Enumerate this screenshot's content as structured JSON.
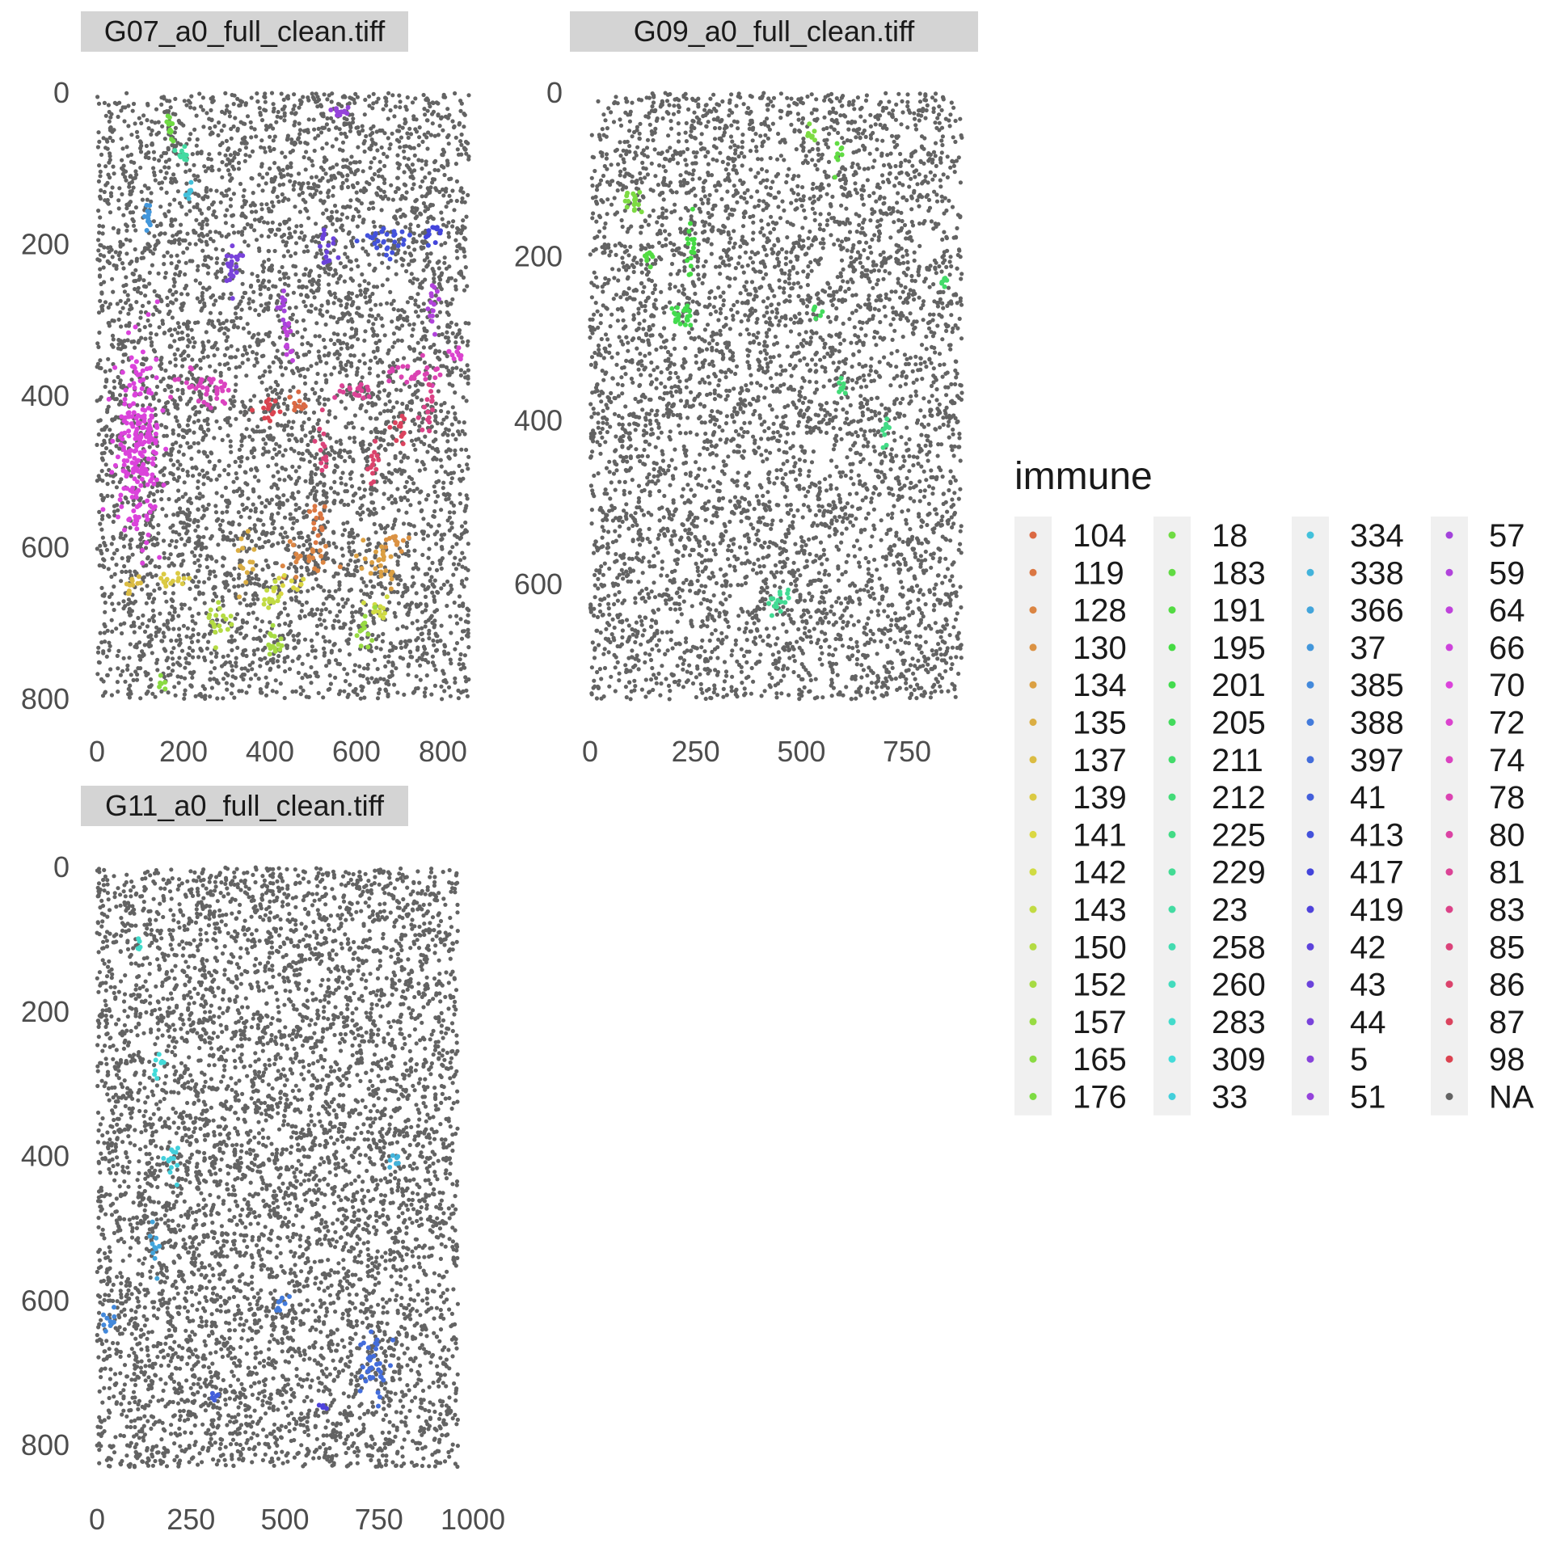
{
  "chart_data": {
    "type": "scatter",
    "title": "",
    "panels": [
      {
        "strip": "G07_a0_full_clean.tiff",
        "xlim": [
          0,
          860
        ],
        "ylim": [
          0,
          800
        ],
        "y_reversed": true,
        "x_ticks": [
          0,
          200,
          400,
          600,
          800
        ],
        "y_ticks": [
          0,
          200,
          400,
          600,
          800
        ],
        "extent": {
          "x": [
            0,
            860
          ],
          "y": [
            0,
            800
          ]
        },
        "point_count": 5200,
        "background_series": "NA",
        "clusters": [
          {
            "label": "18",
            "x": 170,
            "y": 55,
            "n": 12,
            "spread": [
              10,
              20
            ]
          },
          {
            "label": "23",
            "x": 200,
            "y": 80,
            "n": 10,
            "spread": [
              15,
              8
            ]
          },
          {
            "label": "334",
            "x": 215,
            "y": 130,
            "n": 8,
            "spread": [
              6,
              10
            ]
          },
          {
            "label": "37",
            "x": 120,
            "y": 165,
            "n": 12,
            "spread": [
              8,
              15
            ]
          },
          {
            "label": "51",
            "x": 560,
            "y": 25,
            "n": 14,
            "spread": [
              30,
              8
            ]
          },
          {
            "label": "44",
            "x": 310,
            "y": 225,
            "n": 22,
            "spread": [
              20,
              30
            ]
          },
          {
            "label": "43",
            "x": 530,
            "y": 200,
            "n": 16,
            "spread": [
              25,
              25
            ]
          },
          {
            "label": "413",
            "x": 680,
            "y": 195,
            "n": 30,
            "spread": [
              60,
              20
            ]
          },
          {
            "label": "417",
            "x": 780,
            "y": 185,
            "n": 10,
            "spread": [
              30,
              12
            ]
          },
          {
            "label": "57",
            "x": 430,
            "y": 280,
            "n": 12,
            "spread": [
              10,
              20
            ]
          },
          {
            "label": "59",
            "x": 780,
            "y": 280,
            "n": 14,
            "spread": [
              15,
              25
            ]
          },
          {
            "label": "64",
            "x": 440,
            "y": 330,
            "n": 12,
            "spread": [
              10,
              20
            ]
          },
          {
            "label": "70",
            "x": 95,
            "y": 460,
            "n": 220,
            "spread": [
              45,
              90
            ]
          },
          {
            "label": "74",
            "x": 250,
            "y": 390,
            "n": 40,
            "spread": [
              50,
              20
            ]
          },
          {
            "label": "78",
            "x": 740,
            "y": 370,
            "n": 26,
            "spread": [
              60,
              15
            ]
          },
          {
            "label": "72",
            "x": 830,
            "y": 340,
            "n": 10,
            "spread": [
              20,
              10
            ]
          },
          {
            "label": "81",
            "x": 610,
            "y": 395,
            "n": 18,
            "spread": [
              40,
              10
            ]
          },
          {
            "label": "83",
            "x": 770,
            "y": 410,
            "n": 16,
            "spread": [
              15,
              25
            ]
          },
          {
            "label": "85",
            "x": 520,
            "y": 480,
            "n": 14,
            "spread": [
              10,
              30
            ]
          },
          {
            "label": "86",
            "x": 640,
            "y": 490,
            "n": 14,
            "spread": [
              15,
              25
            ]
          },
          {
            "label": "87",
            "x": 700,
            "y": 440,
            "n": 12,
            "spread": [
              15,
              15
            ]
          },
          {
            "label": "98",
            "x": 400,
            "y": 420,
            "n": 14,
            "spread": [
              30,
              15
            ]
          },
          {
            "label": "104",
            "x": 460,
            "y": 410,
            "n": 10,
            "spread": [
              25,
              10
            ]
          },
          {
            "label": "119",
            "x": 510,
            "y": 560,
            "n": 14,
            "spread": [
              20,
              30
            ]
          },
          {
            "label": "128",
            "x": 480,
            "y": 615,
            "n": 22,
            "spread": [
              60,
              20
            ]
          },
          {
            "label": "130",
            "x": 690,
            "y": 590,
            "n": 12,
            "spread": [
              20,
              10
            ]
          },
          {
            "label": "134",
            "x": 660,
            "y": 625,
            "n": 24,
            "spread": [
              30,
              25
            ]
          },
          {
            "label": "135",
            "x": 340,
            "y": 620,
            "n": 14,
            "spread": [
              20,
              25
            ]
          },
          {
            "label": "137",
            "x": 80,
            "y": 650,
            "n": 12,
            "spread": [
              15,
              15
            ]
          },
          {
            "label": "139",
            "x": 180,
            "y": 640,
            "n": 14,
            "spread": [
              30,
              10
            ]
          },
          {
            "label": "141",
            "x": 450,
            "y": 650,
            "n": 10,
            "spread": [
              30,
              10
            ]
          },
          {
            "label": "142",
            "x": 650,
            "y": 680,
            "n": 12,
            "spread": [
              20,
              15
            ]
          },
          {
            "label": "143",
            "x": 400,
            "y": 670,
            "n": 14,
            "spread": [
              20,
              12
            ]
          },
          {
            "label": "150",
            "x": 280,
            "y": 700,
            "n": 18,
            "spread": [
              30,
              20
            ]
          },
          {
            "label": "152",
            "x": 410,
            "y": 720,
            "n": 16,
            "spread": [
              20,
              25
            ]
          },
          {
            "label": "157",
            "x": 620,
            "y": 710,
            "n": 12,
            "spread": [
              15,
              25
            ]
          },
          {
            "label": "165",
            "x": 150,
            "y": 780,
            "n": 6,
            "spread": [
              12,
              6
            ]
          }
        ]
      },
      {
        "strip": "G09_a0_full_clean.tiff",
        "xlim": [
          0,
          880
        ],
        "ylim": [
          0,
          740
        ],
        "y_reversed": true,
        "x_ticks": [
          0,
          250,
          500,
          750
        ],
        "y_ticks": [
          0,
          200,
          400,
          600
        ],
        "extent": {
          "x": [
            0,
            880
          ],
          "y": [
            0,
            740
          ]
        },
        "point_count": 5000,
        "background_series": "NA",
        "clusters": [
          {
            "label": "176",
            "x": 520,
            "y": 45,
            "n": 8,
            "spread": [
              12,
              12
            ]
          },
          {
            "label": "183",
            "x": 590,
            "y": 80,
            "n": 8,
            "spread": [
              12,
              15
            ]
          },
          {
            "label": "176",
            "x": 100,
            "y": 130,
            "n": 16,
            "spread": [
              20,
              15
            ]
          },
          {
            "label": "191",
            "x": 140,
            "y": 205,
            "n": 8,
            "spread": [
              12,
              12
            ]
          },
          {
            "label": "195",
            "x": 240,
            "y": 195,
            "n": 16,
            "spread": [
              8,
              40
            ]
          },
          {
            "label": "201",
            "x": 220,
            "y": 270,
            "n": 22,
            "spread": [
              25,
              15
            ]
          },
          {
            "label": "205",
            "x": 540,
            "y": 270,
            "n": 6,
            "spread": [
              10,
              12
            ]
          },
          {
            "label": "211",
            "x": 840,
            "y": 235,
            "n": 8,
            "spread": [
              8,
              15
            ]
          },
          {
            "label": "212",
            "x": 600,
            "y": 355,
            "n": 8,
            "spread": [
              12,
              12
            ]
          },
          {
            "label": "225",
            "x": 700,
            "y": 410,
            "n": 10,
            "spread": [
              12,
              20
            ]
          },
          {
            "label": "229",
            "x": 450,
            "y": 620,
            "n": 16,
            "spread": [
              22,
              20
            ]
          }
        ]
      },
      {
        "strip": "G11_a0_full_clean.tiff",
        "xlim": [
          0,
          1000
        ],
        "ylim": [
          0,
          830
        ],
        "y_reversed": true,
        "x_ticks": [
          0,
          250,
          500,
          750,
          1000
        ],
        "y_ticks": [
          0,
          200,
          400,
          600,
          800
        ],
        "extent": {
          "x": [
            0,
            960
          ],
          "y": [
            0,
            830
          ]
        },
        "point_count": 5600,
        "background_series": "NA",
        "clusters": [
          {
            "label": "283",
            "x": 110,
            "y": 105,
            "n": 5,
            "spread": [
              6,
              10
            ]
          },
          {
            "label": "309",
            "x": 165,
            "y": 275,
            "n": 8,
            "spread": [
              15,
              12
            ]
          },
          {
            "label": "33",
            "x": 200,
            "y": 405,
            "n": 14,
            "spread": [
              18,
              25
            ]
          },
          {
            "label": "338",
            "x": 790,
            "y": 405,
            "n": 7,
            "spread": [
              15,
              10
            ]
          },
          {
            "label": "366",
            "x": 155,
            "y": 520,
            "n": 10,
            "spread": [
              10,
              25
            ]
          },
          {
            "label": "385",
            "x": 35,
            "y": 625,
            "n": 10,
            "spread": [
              20,
              20
            ]
          },
          {
            "label": "388",
            "x": 490,
            "y": 600,
            "n": 8,
            "spread": [
              15,
              12
            ]
          },
          {
            "label": "397",
            "x": 740,
            "y": 690,
            "n": 36,
            "spread": [
              35,
              40
            ]
          },
          {
            "label": "41",
            "x": 310,
            "y": 735,
            "n": 6,
            "spread": [
              10,
              10
            ]
          },
          {
            "label": "419",
            "x": 600,
            "y": 750,
            "n": 5,
            "spread": [
              10,
              8
            ]
          }
        ]
      }
    ],
    "legend": {
      "title": "immune",
      "position": "right",
      "columns": [
        [
          "104",
          "119",
          "128",
          "130",
          "134",
          "135",
          "137",
          "139",
          "141",
          "142",
          "143",
          "150",
          "152",
          "157",
          "165",
          "176"
        ],
        [
          "18",
          "183",
          "191",
          "195",
          "201",
          "205",
          "211",
          "212",
          "225",
          "229",
          "23",
          "258",
          "260",
          "283",
          "309",
          "33"
        ],
        [
          "334",
          "338",
          "366",
          "37",
          "385",
          "388",
          "397",
          "41",
          "413",
          "417",
          "419",
          "42",
          "43",
          "44",
          "5",
          "51"
        ],
        [
          "57",
          "59",
          "64",
          "66",
          "70",
          "72",
          "74",
          "78",
          "80",
          "81",
          "83",
          "85",
          "86",
          "87",
          "98",
          "NA"
        ]
      ]
    },
    "colors": {
      "NA": "#636363",
      "strip_bg": "#d4d4d4",
      "hue_start": 15,
      "hue_end": 360
    }
  }
}
